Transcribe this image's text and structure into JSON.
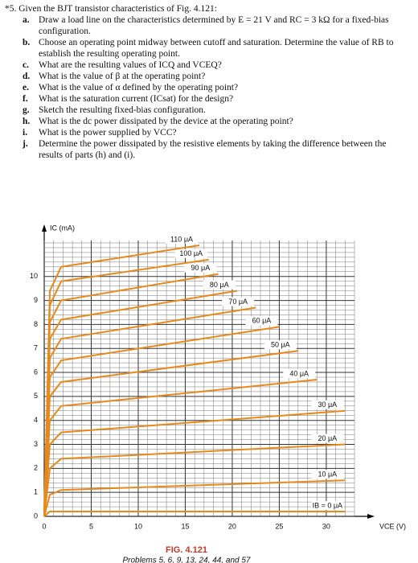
{
  "problem": {
    "heading": "*5. Given the BJT transistor characteristics of Fig. 4.121:",
    "items": [
      {
        "letter": "a.",
        "text": "Draw a load line on the characteristics determined by E = 21 V and RC = 3 kΩ for a fixed-bias configuration."
      },
      {
        "letter": "b.",
        "text": "Choose an operating point midway between cutoff and saturation. Determine the value of RB to establish the resulting operating point."
      },
      {
        "letter": "c.",
        "text": "What are the resulting values of ICQ and VCEQ?"
      },
      {
        "letter": "d.",
        "text": "What is the value of β at the operating point?"
      },
      {
        "letter": "e.",
        "text": "What is the value of α defined by the operating point?"
      },
      {
        "letter": "f.",
        "text": "What is the saturation current (ICsat) for the design?"
      },
      {
        "letter": "g.",
        "text": "Sketch the resulting fixed-bias configuration."
      },
      {
        "letter": "h.",
        "text": "What is the dc power dissipated by the device at the operating point?"
      },
      {
        "letter": "i.",
        "text": "What is the power supplied by VCC?"
      },
      {
        "letter": "j.",
        "text": "Determine the power dissipated by the resistive elements by taking the difference between the results of parts (h) and (i)."
      }
    ]
  },
  "chart_data": {
    "type": "line",
    "x_label": "VCE (V)",
    "y_label": "IC (mA)",
    "xlim": [
      0,
      33
    ],
    "ylim": [
      0,
      11.5
    ],
    "xticks": [
      0,
      5,
      10,
      15,
      20,
      25,
      30
    ],
    "yticks": [
      0,
      1,
      2,
      3,
      4,
      5,
      6,
      7,
      8,
      9,
      10
    ],
    "grid": true,
    "series": [
      {
        "name": "IB = 0 μA",
        "color": "#e8891c",
        "x": [
          0,
          0.6,
          32
        ],
        "values": [
          0,
          0.2,
          0.2
        ]
      },
      {
        "name": "10 μA",
        "color": "#e8891c",
        "x": [
          0,
          0.6,
          1.8,
          32
        ],
        "values": [
          0,
          0.9,
          1.1,
          1.5
        ]
      },
      {
        "name": "20 μA",
        "color": "#e8891c",
        "x": [
          0,
          0.6,
          1.8,
          32
        ],
        "values": [
          0,
          2.0,
          2.4,
          3.0
        ]
      },
      {
        "name": "30 μA",
        "color": "#e8891c",
        "x": [
          0,
          0.6,
          1.8,
          32
        ],
        "values": [
          0,
          3.0,
          3.5,
          4.4
        ]
      },
      {
        "name": "40 μA",
        "color": "#e8891c",
        "x": [
          0,
          0.6,
          1.8,
          29
        ],
        "values": [
          0,
          4.0,
          4.6,
          5.7
        ]
      },
      {
        "name": "50 μA",
        "color": "#e8891c",
        "x": [
          0,
          0.6,
          1.8,
          27
        ],
        "values": [
          0,
          5.0,
          5.6,
          6.9
        ]
      },
      {
        "name": "60 μA",
        "color": "#e8891c",
        "x": [
          0,
          0.6,
          1.8,
          25
        ],
        "values": [
          0,
          5.8,
          6.5,
          7.9
        ]
      },
      {
        "name": "70 μA",
        "color": "#e8891c",
        "x": [
          0,
          0.6,
          1.8,
          22.5
        ],
        "values": [
          0,
          6.6,
          7.4,
          8.7
        ]
      },
      {
        "name": "80 μA",
        "color": "#e8891c",
        "x": [
          0,
          0.6,
          1.8,
          20.5
        ],
        "values": [
          0,
          7.4,
          8.2,
          9.4
        ]
      },
      {
        "name": "90 μA",
        "color": "#e8891c",
        "x": [
          0,
          0.6,
          1.8,
          18.5
        ],
        "values": [
          0,
          8.1,
          9.0,
          10.1
        ]
      },
      {
        "name": "100 μA",
        "color": "#e8891c",
        "x": [
          0,
          0.6,
          1.8,
          17.5
        ],
        "values": [
          0,
          8.8,
          9.8,
          10.7
        ]
      },
      {
        "name": "110 μA",
        "color": "#e8891c",
        "x": [
          0,
          0.6,
          1.8,
          16.5
        ],
        "values": [
          0,
          9.4,
          10.4,
          11.3
        ]
      }
    ]
  },
  "caption": {
    "figure": "FIG. 4.121",
    "problems": "Problems 5, 6, 9, 13, 24, 44, and 57"
  }
}
